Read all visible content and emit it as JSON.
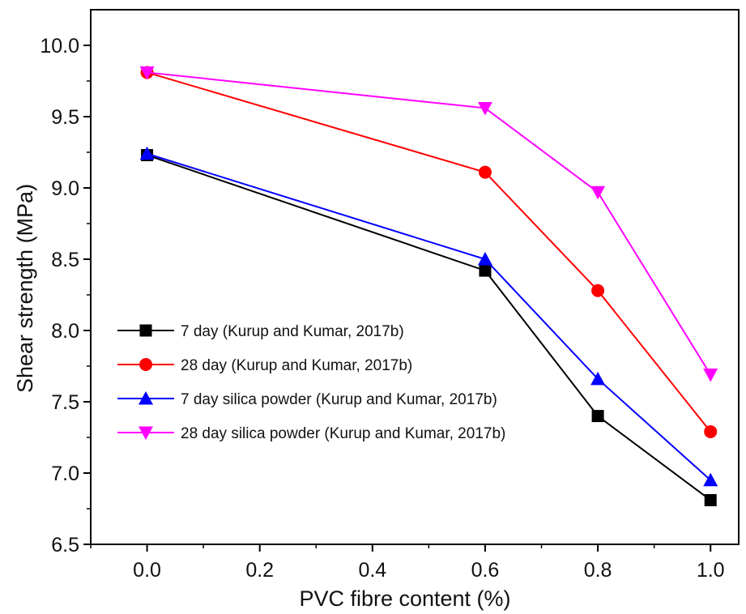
{
  "chart_data": {
    "type": "line",
    "title": "",
    "xlabel": "PVC fibre content (%)",
    "ylabel": "Shear strength (MPa)",
    "xlim": [
      -0.1,
      1.05
    ],
    "ylim": [
      6.5,
      10.25
    ],
    "x_ticks": [
      "0.0",
      "0.2",
      "0.4",
      "0.6",
      "0.8",
      "1.0"
    ],
    "y_ticks": [
      "6.5",
      "7.0",
      "7.5",
      "8.0",
      "8.5",
      "9.0",
      "9.5",
      "10.0"
    ],
    "grid": false,
    "legend_position": "center-left",
    "series": [
      {
        "name": "7 day (Kurup and Kumar, 2017b)",
        "color": "#000000",
        "marker": "square",
        "x": [
          0.0,
          0.6,
          0.8,
          1.0
        ],
        "y": [
          9.23,
          8.42,
          7.4,
          6.81
        ]
      },
      {
        "name": "28 day (Kurup and Kumar, 2017b)",
        "color": "#ff0000",
        "marker": "circle",
        "x": [
          0.0,
          0.6,
          0.8,
          1.0
        ],
        "y": [
          9.81,
          9.11,
          8.28,
          7.29
        ]
      },
      {
        "name": "7 day silica powder (Kurup and Kumar, 2017b)",
        "color": "#0000ff",
        "marker": "triangle-up",
        "x": [
          0.0,
          0.6,
          0.8,
          1.0
        ],
        "y": [
          9.24,
          8.5,
          7.66,
          6.95
        ]
      },
      {
        "name": "28 day silica powder (Kurup and Kumar, 2017b)",
        "color": "#ff00ff",
        "marker": "triangle-down",
        "x": [
          0.0,
          0.6,
          0.8,
          1.0
        ],
        "y": [
          9.81,
          9.56,
          8.97,
          7.69
        ]
      }
    ]
  }
}
